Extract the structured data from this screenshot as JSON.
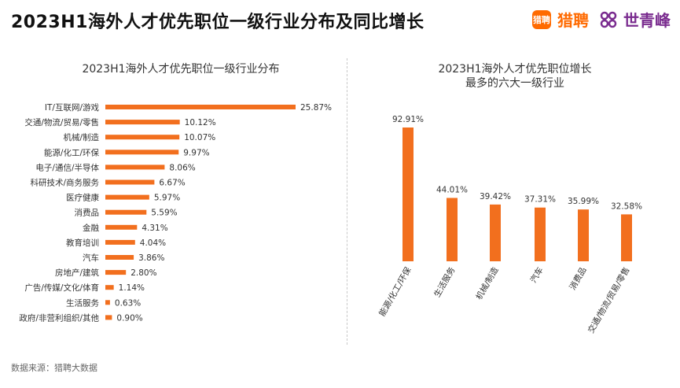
{
  "header": {
    "title": "2023H1海外人才优先职位一级行业分布及同比增长",
    "brand_liepin_logo": "猎聘",
    "brand_liepin": "猎聘",
    "brand_shiqingfeng": "世青峰"
  },
  "colors": {
    "accent": "#f26f1e",
    "liepin": "#ff6a00",
    "shiqingfeng": "#7a2c8f"
  },
  "footer": {
    "source": "数据来源：猎聘大数据"
  },
  "chart_data": [
    {
      "type": "bar",
      "orientation": "horizontal",
      "title": "2023H1海外人才优先职位一级行业分布",
      "categories": [
        "IT/互联网/游戏",
        "交通/物流/贸易/零售",
        "机械/制造",
        "能源/化工/环保",
        "电子/通信/半导体",
        "科研技术/商务服务",
        "医疗健康",
        "消费品",
        "金融",
        "教育培训",
        "汽车",
        "房地产/建筑",
        "广告/传媒/文化/体育",
        "生活服务",
        "政府/非营利组织/其他"
      ],
      "values": [
        25.87,
        10.12,
        10.07,
        9.97,
        8.06,
        6.67,
        5.97,
        5.59,
        4.31,
        4.04,
        3.86,
        2.8,
        1.14,
        0.63,
        0.9
      ],
      "labels": [
        "25.87%",
        "10.12%",
        "10.07%",
        "9.97%",
        "8.06%",
        "6.67%",
        "5.97%",
        "5.59%",
        "4.31%",
        "4.04%",
        "3.86%",
        "2.80%",
        "1.14%",
        "0.63%",
        "0.90%"
      ],
      "unit": "%",
      "grid": false
    },
    {
      "type": "bar",
      "orientation": "vertical",
      "title_lines": [
        "2023H1海外人才优先职位增长",
        "最多的六大一级行业"
      ],
      "categories": [
        "能源/化工/环保",
        "生活服务",
        "机械/制造",
        "汽车",
        "消费品",
        "交通/物流/贸易/零售"
      ],
      "values": [
        92.91,
        44.01,
        39.42,
        37.31,
        35.99,
        32.58
      ],
      "labels": [
        "92.91%",
        "44.01%",
        "39.42%",
        "37.31%",
        "35.99%",
        "32.58%"
      ],
      "unit": "%",
      "grid": false
    }
  ]
}
